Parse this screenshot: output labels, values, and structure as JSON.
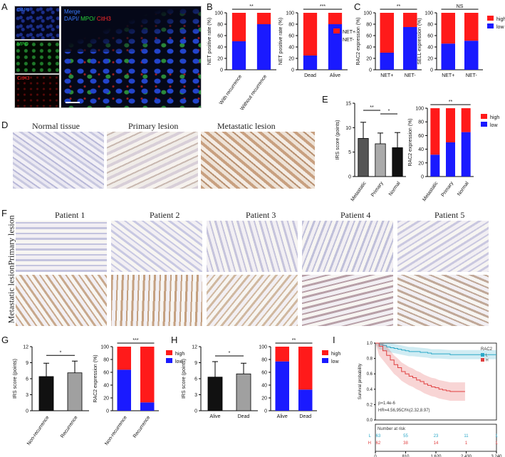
{
  "panel_labels": [
    "A",
    "B",
    "C",
    "D",
    "E",
    "F",
    "G",
    "H",
    "I"
  ],
  "panelA": {
    "tiles": [
      "DAPI",
      "MPO",
      "CitH3"
    ],
    "merge_title": "Merge",
    "merge_channels": [
      "DAPI/",
      "MPO/",
      "CitH3"
    ],
    "colors": {
      "dapi": "#3a7bff",
      "mpo": "#29d43a",
      "cith3": "#ff2a2a"
    }
  },
  "panelD": {
    "titles": [
      "Normal tissue",
      "Primary lesion",
      "Metastatic lesion"
    ]
  },
  "panelF": {
    "patients": [
      "Patient 1",
      "Patient 2",
      "Patient 3",
      "Patient 4",
      "Patient 5"
    ],
    "rows": [
      "Primary lesion",
      "Metastatic lesion"
    ]
  },
  "colors": {
    "high": "#ff1a1a",
    "low": "#1a1aff",
    "bar_dark": "#111111",
    "bar_gray": "#a0a0a0"
  },
  "chart_data": [
    {
      "id": "B1",
      "type": "bar",
      "stacked": true,
      "ylabel": "NET positive rate (%)",
      "categories": [
        "With recurrence",
        "Without recurrence"
      ],
      "series": [
        {
          "name": "NET+",
          "values": [
            50,
            20
          ]
        },
        {
          "name": "NET-",
          "values": [
            50,
            80
          ]
        }
      ],
      "ylim": [
        0,
        100
      ],
      "yticks": [
        0,
        20,
        40,
        60,
        80,
        100
      ],
      "sig": "**"
    },
    {
      "id": "B2",
      "type": "bar",
      "stacked": true,
      "ylabel": "NET positive rate (%)",
      "categories": [
        "Dead",
        "Alive"
      ],
      "series": [
        {
          "name": "NET+",
          "values": [
            75,
            20
          ]
        },
        {
          "name": "NET-",
          "values": [
            25,
            80
          ]
        }
      ],
      "ylim": [
        0,
        100
      ],
      "yticks": [
        0,
        20,
        40,
        60,
        80,
        100
      ],
      "sig": "***",
      "legend": [
        "NET+",
        "NET-"
      ]
    },
    {
      "id": "C1",
      "type": "bar",
      "stacked": true,
      "ylabel": "RAC2 expression (%)",
      "categories": [
        "NET+",
        "NET-"
      ],
      "series": [
        {
          "name": "high",
          "values": [
            70,
            25
          ]
        },
        {
          "name": "low",
          "values": [
            30,
            75
          ]
        }
      ],
      "ylim": [
        0,
        100
      ],
      "yticks": [
        0,
        20,
        40,
        60,
        80,
        100
      ],
      "sig": "**"
    },
    {
      "id": "C2",
      "type": "bar",
      "stacked": true,
      "ylabel": "SELL expression (%)",
      "categories": [
        "NET+",
        "NET-"
      ],
      "series": [
        {
          "name": "high",
          "values": [
            54,
            49
          ]
        },
        {
          "name": "low",
          "values": [
            46,
            51
          ]
        }
      ],
      "ylim": [
        0,
        100
      ],
      "yticks": [
        0,
        20,
        40,
        60,
        80,
        100
      ],
      "sig": "NS",
      "legend": [
        "high",
        "low"
      ]
    },
    {
      "id": "E1",
      "type": "bar",
      "ylabel": "IRS score (points)",
      "categories": [
        "Metastatic",
        "Primary",
        "Normal"
      ],
      "values": [
        7.8,
        6.7,
        5.9
      ],
      "errors": [
        3.3,
        2.2,
        3.1
      ],
      "ylim": [
        0,
        15
      ],
      "yticks": [
        0,
        5,
        10,
        15
      ],
      "sig": [
        "**",
        "*"
      ]
    },
    {
      "id": "E2",
      "type": "bar",
      "stacked": true,
      "ylabel": "RAC2 expression (%)",
      "categories": [
        "Metastatic",
        "Primary",
        "Normal"
      ],
      "series": [
        {
          "name": "high",
          "values": [
            68,
            50,
            35
          ]
        },
        {
          "name": "low",
          "values": [
            32,
            50,
            65
          ]
        }
      ],
      "ylim": [
        0,
        100
      ],
      "yticks": [
        0,
        20,
        40,
        60,
        80,
        100
      ],
      "sig": "**",
      "legend": [
        "high",
        "low"
      ]
    },
    {
      "id": "G1",
      "type": "bar",
      "ylabel": "IRS score (points)",
      "categories": [
        "Non-recurrence",
        "Recurrence"
      ],
      "values": [
        6.4,
        7.1
      ],
      "errors": [
        2.5,
        2.2
      ],
      "ylim": [
        0,
        12
      ],
      "yticks": [
        0,
        3,
        6,
        9,
        12
      ],
      "sig": "*"
    },
    {
      "id": "G2",
      "type": "bar",
      "stacked": true,
      "ylabel": "RAC2 expression (%)",
      "categories": [
        "Non-recurrence",
        "Recurrence"
      ],
      "series": [
        {
          "name": "high",
          "values": [
            36,
            87
          ]
        },
        {
          "name": "low",
          "values": [
            64,
            13
          ]
        }
      ],
      "ylim": [
        0,
        100
      ],
      "yticks": [
        0,
        20,
        40,
        60,
        80,
        100
      ],
      "sig": "***",
      "legend": [
        "high",
        "low"
      ]
    },
    {
      "id": "H1",
      "type": "bar",
      "ylabel": "IRS score (points)",
      "categories": [
        "Alive",
        "Dead"
      ],
      "values": [
        6.3,
        6.9
      ],
      "errors": [
        2.9,
        2.0
      ],
      "ylim": [
        0,
        12
      ],
      "yticks": [
        0,
        3,
        6,
        9,
        12
      ],
      "sig": "*"
    },
    {
      "id": "H2",
      "type": "bar",
      "stacked": true,
      "ylabel": "",
      "categories": [
        "Alive",
        "Dead"
      ],
      "series": [
        {
          "name": "high",
          "values": [
            23,
            67
          ]
        },
        {
          "name": "low",
          "values": [
            77,
            33
          ]
        }
      ],
      "ylim": [
        0,
        100
      ],
      "yticks": [
        0,
        20,
        40,
        60,
        80,
        100
      ],
      "sig": "**",
      "legend": [
        "high",
        "low"
      ]
    },
    {
      "id": "I",
      "type": "line",
      "title": "RAC2",
      "ylabel": "Survival probability",
      "xlabel": "Overall survival (days)",
      "xlim": [
        0,
        3240
      ],
      "ylim": [
        0,
        1
      ],
      "xticks": [
        "0",
        "810",
        "1,620",
        "2,430",
        "3,240"
      ],
      "yticks": [
        "0.0",
        "0.2",
        "0.4",
        "0.6",
        "0.8",
        "1.0"
      ],
      "series": [
        {
          "name": "L",
          "color": "#2aa8c8",
          "x": [
            0,
            100,
            200,
            300,
            400,
            500,
            600,
            700,
            800,
            900,
            1000,
            1200,
            1400,
            1500,
            1700,
            2000,
            2300,
            2600,
            3000,
            3240
          ],
          "y": [
            1.0,
            0.98,
            0.97,
            0.95,
            0.94,
            0.93,
            0.92,
            0.91,
            0.9,
            0.89,
            0.89,
            0.88,
            0.87,
            0.86,
            0.86,
            0.85,
            0.85,
            0.85,
            0.85,
            0.85
          ]
        },
        {
          "name": "H",
          "color": "#e04040",
          "x": [
            0,
            100,
            200,
            300,
            400,
            500,
            600,
            700,
            800,
            900,
            1000,
            1100,
            1200,
            1300,
            1400,
            1500,
            1600,
            1700,
            1800,
            1900,
            2000,
            2200,
            2400
          ],
          "y": [
            1.0,
            0.96,
            0.9,
            0.84,
            0.78,
            0.72,
            0.68,
            0.63,
            0.6,
            0.57,
            0.55,
            0.52,
            0.5,
            0.47,
            0.45,
            0.43,
            0.42,
            0.4,
            0.39,
            0.38,
            0.37,
            0.37,
            0.37
          ]
        }
      ],
      "annotations": [
        "p=1.4e-6",
        "HR=4.56,95CI%(2.32,8.97)"
      ],
      "risk_table": {
        "title": "Number at risk",
        "rows": [
          {
            "name": "L",
            "color": "#2aa8c8",
            "values": [
              "63",
              "55",
              "23",
              "11",
              "1"
            ]
          },
          {
            "name": "H",
            "color": "#e04040",
            "values": [
              "62",
              "38",
              "14",
              "1",
              "1"
            ]
          }
        ]
      }
    }
  ]
}
